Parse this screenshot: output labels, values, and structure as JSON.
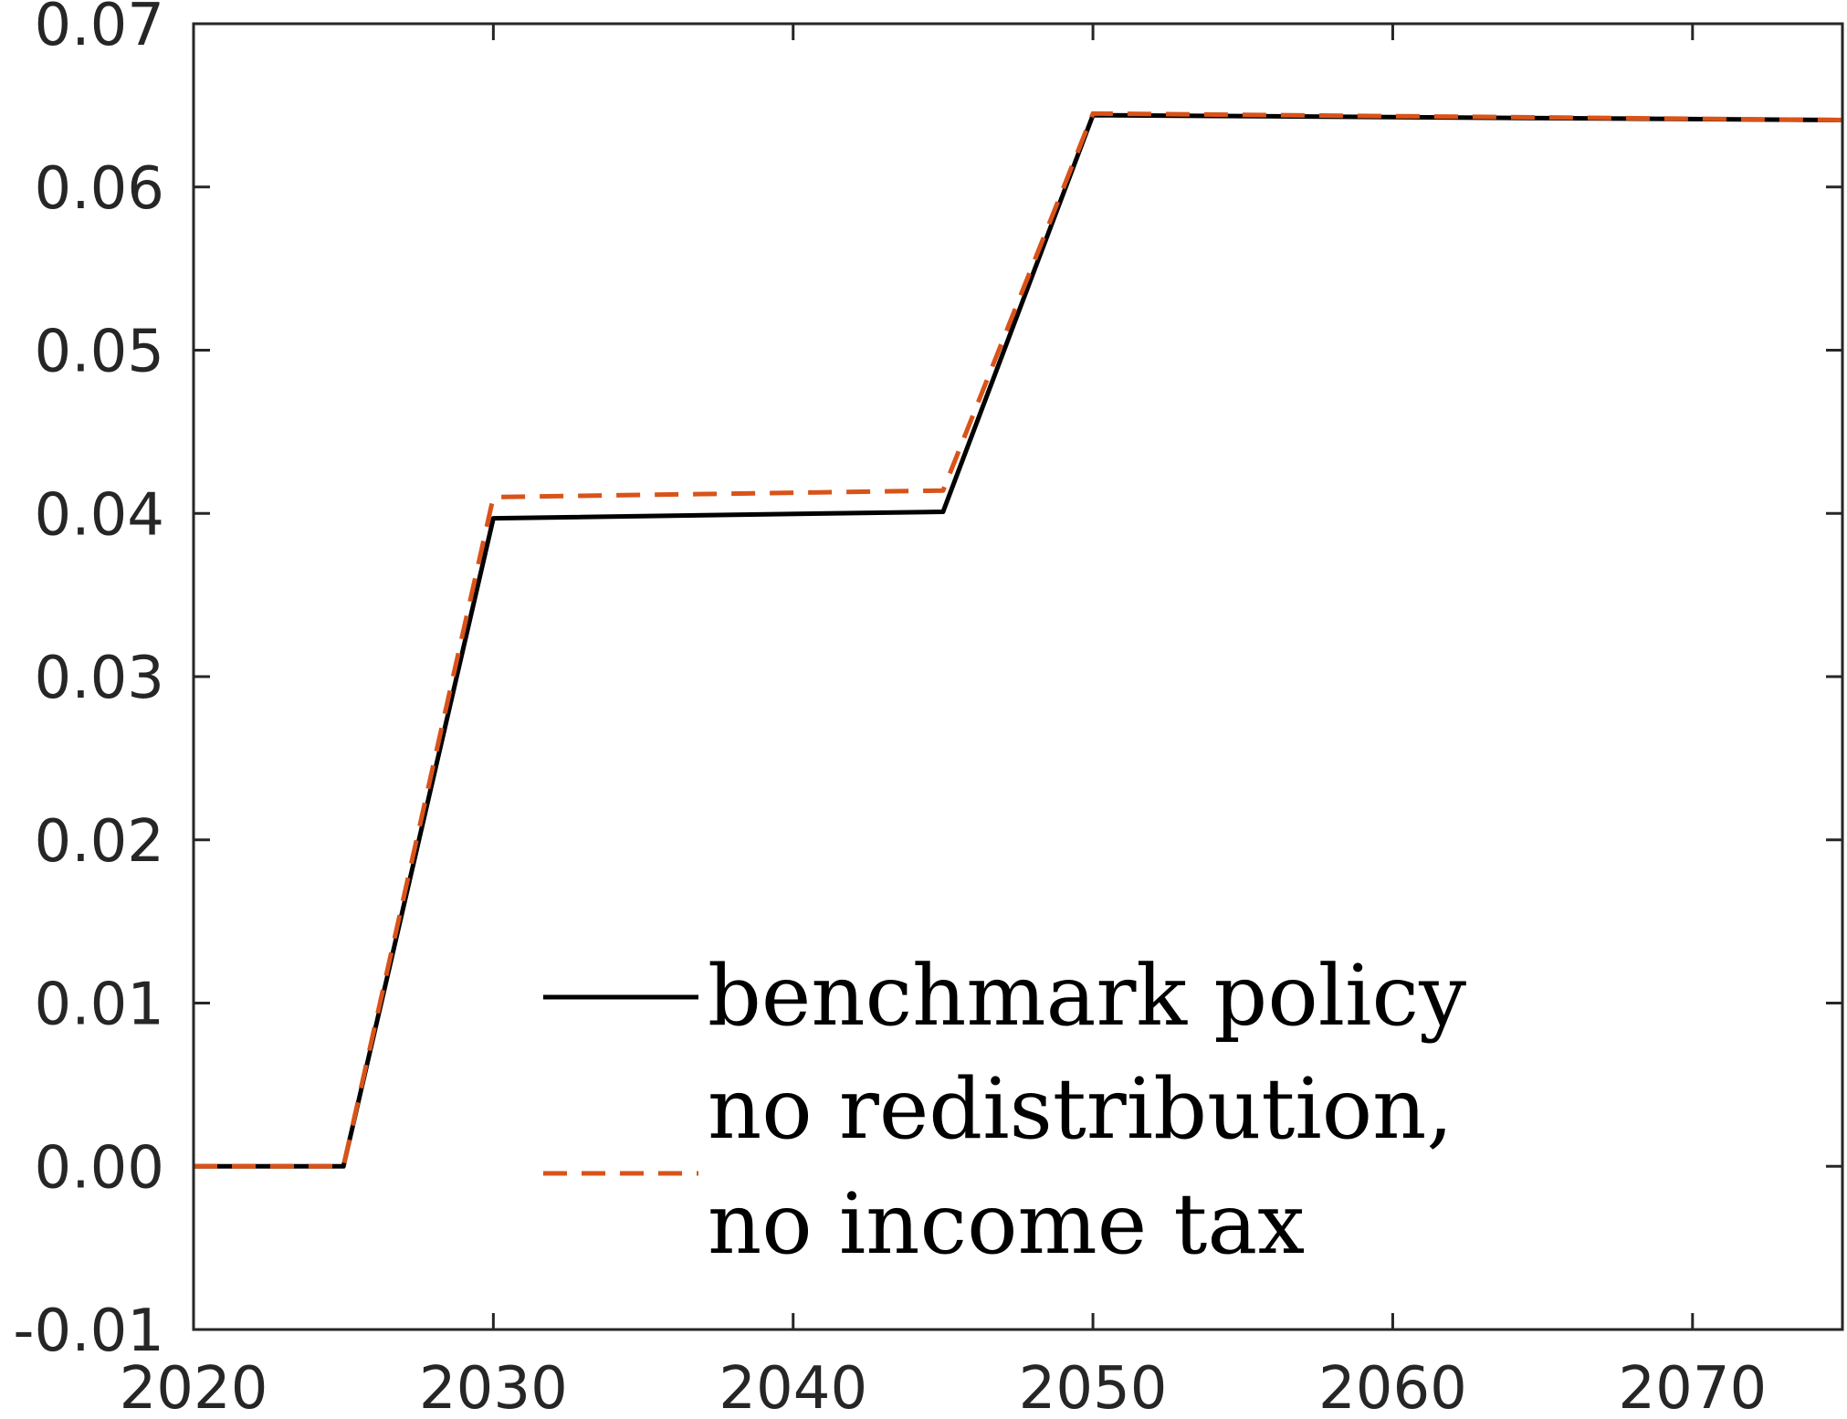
{
  "chart_data": {
    "type": "line",
    "title": "",
    "xlabel": "",
    "ylabel": "",
    "xlim": [
      2020,
      2075
    ],
    "ylim": [
      -0.01,
      0.07
    ],
    "x_ticks": [
      "2020",
      "2030",
      "2040",
      "2050",
      "2060",
      "2070"
    ],
    "x_tick_values": [
      2020,
      2030,
      2040,
      2050,
      2060,
      2070
    ],
    "y_ticks": [
      "-0.01",
      "0.00",
      "0.01",
      "0.02",
      "0.03",
      "0.04",
      "0.05",
      "0.06",
      "0.07"
    ],
    "y_tick_values": [
      -0.01,
      0.0,
      0.01,
      0.02,
      0.03,
      0.04,
      0.05,
      0.06,
      0.07
    ],
    "grid": false,
    "legend_position": "bottom-center",
    "series": [
      {
        "name": "benchmark policy",
        "style": "solid",
        "color": "#000000",
        "x": [
          2020,
          2025,
          2030,
          2045,
          2050,
          2075
        ],
        "y": [
          0.0,
          0.0,
          0.0397,
          0.0401,
          0.0644,
          0.0641
        ]
      },
      {
        "name": "no redistribution, no income tax",
        "legend_lines": [
          "no redistribution,",
          "no income tax"
        ],
        "style": "dashed",
        "color": "#D95319",
        "x": [
          2020,
          2025,
          2030,
          2045,
          2050,
          2075
        ],
        "y": [
          0.0,
          0.0,
          0.041,
          0.0414,
          0.0645,
          0.0641
        ]
      }
    ]
  }
}
